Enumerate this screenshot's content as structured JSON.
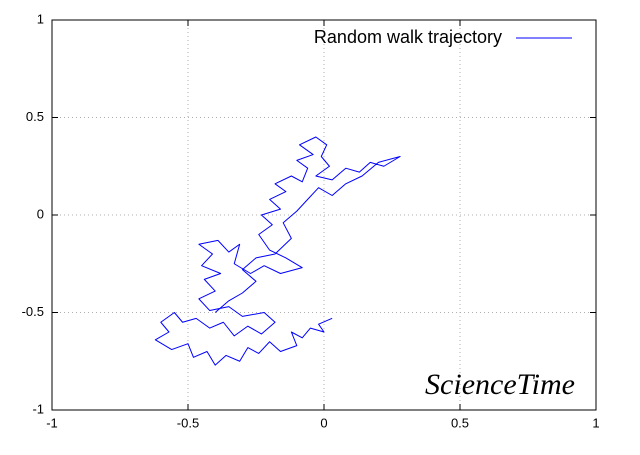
{
  "chart_data": {
    "type": "line",
    "x": [
      0.03,
      -0.02,
      0.0,
      -0.05,
      -0.08,
      -0.12,
      -0.1,
      -0.16,
      -0.2,
      -0.24,
      -0.28,
      -0.31,
      -0.36,
      -0.4,
      -0.43,
      -0.48,
      -0.5,
      -0.56,
      -0.62,
      -0.57,
      -0.6,
      -0.55,
      -0.52,
      -0.47,
      -0.42,
      -0.37,
      -0.33,
      -0.28,
      -0.23,
      -0.18,
      -0.22,
      -0.3,
      -0.35,
      -0.42,
      -0.46,
      -0.4,
      -0.44,
      -0.38,
      -0.45,
      -0.41,
      -0.46,
      -0.39,
      -0.35,
      -0.31,
      -0.33,
      -0.27,
      -0.22,
      -0.16,
      -0.08,
      -0.14,
      -0.2,
      -0.24,
      -0.19,
      -0.23,
      -0.16,
      -0.2,
      -0.14,
      -0.18,
      -0.12,
      -0.08,
      -0.06,
      -0.1,
      -0.04,
      -0.09,
      -0.03,
      0.01,
      -0.01,
      0.02,
      -0.03,
      0.03,
      0.08,
      0.13,
      0.17,
      0.22,
      0.28,
      0.2,
      0.14,
      0.08,
      0.03,
      -0.02,
      -0.06,
      -0.1,
      -0.15,
      -0.12,
      -0.18,
      -0.25,
      -0.3,
      -0.25,
      -0.3,
      -0.35,
      -0.4
    ],
    "series": [
      {
        "name": "Random walk trajectory",
        "color": "#0000ff",
        "values": [
          -0.53,
          -0.56,
          -0.6,
          -0.58,
          -0.63,
          -0.6,
          -0.67,
          -0.7,
          -0.65,
          -0.71,
          -0.68,
          -0.75,
          -0.72,
          -0.77,
          -0.7,
          -0.73,
          -0.66,
          -0.69,
          -0.64,
          -0.6,
          -0.55,
          -0.5,
          -0.55,
          -0.53,
          -0.58,
          -0.55,
          -0.62,
          -0.57,
          -0.61,
          -0.55,
          -0.5,
          -0.52,
          -0.47,
          -0.49,
          -0.43,
          -0.39,
          -0.33,
          -0.3,
          -0.26,
          -0.2,
          -0.15,
          -0.13,
          -0.19,
          -0.15,
          -0.25,
          -0.3,
          -0.26,
          -0.3,
          -0.27,
          -0.22,
          -0.18,
          -0.1,
          -0.05,
          0.0,
          0.03,
          0.08,
          0.12,
          0.16,
          0.2,
          0.17,
          0.24,
          0.28,
          0.31,
          0.36,
          0.4,
          0.36,
          0.3,
          0.25,
          0.2,
          0.18,
          0.24,
          0.22,
          0.27,
          0.25,
          0.3,
          0.27,
          0.2,
          0.16,
          0.1,
          0.14,
          0.08,
          0.02,
          -0.04,
          -0.12,
          -0.2,
          -0.22,
          -0.28,
          -0.34,
          -0.4,
          -0.44,
          -0.5
        ]
      }
    ],
    "xlim": [
      -1,
      1
    ],
    "ylim": [
      -1,
      1
    ],
    "xticks": [
      -1,
      -0.5,
      0,
      0.5,
      1
    ],
    "yticks": [
      -1,
      -0.5,
      0,
      0.5,
      1
    ],
    "grid": true,
    "legend": "top right",
    "annotation": "ScienceTime"
  }
}
